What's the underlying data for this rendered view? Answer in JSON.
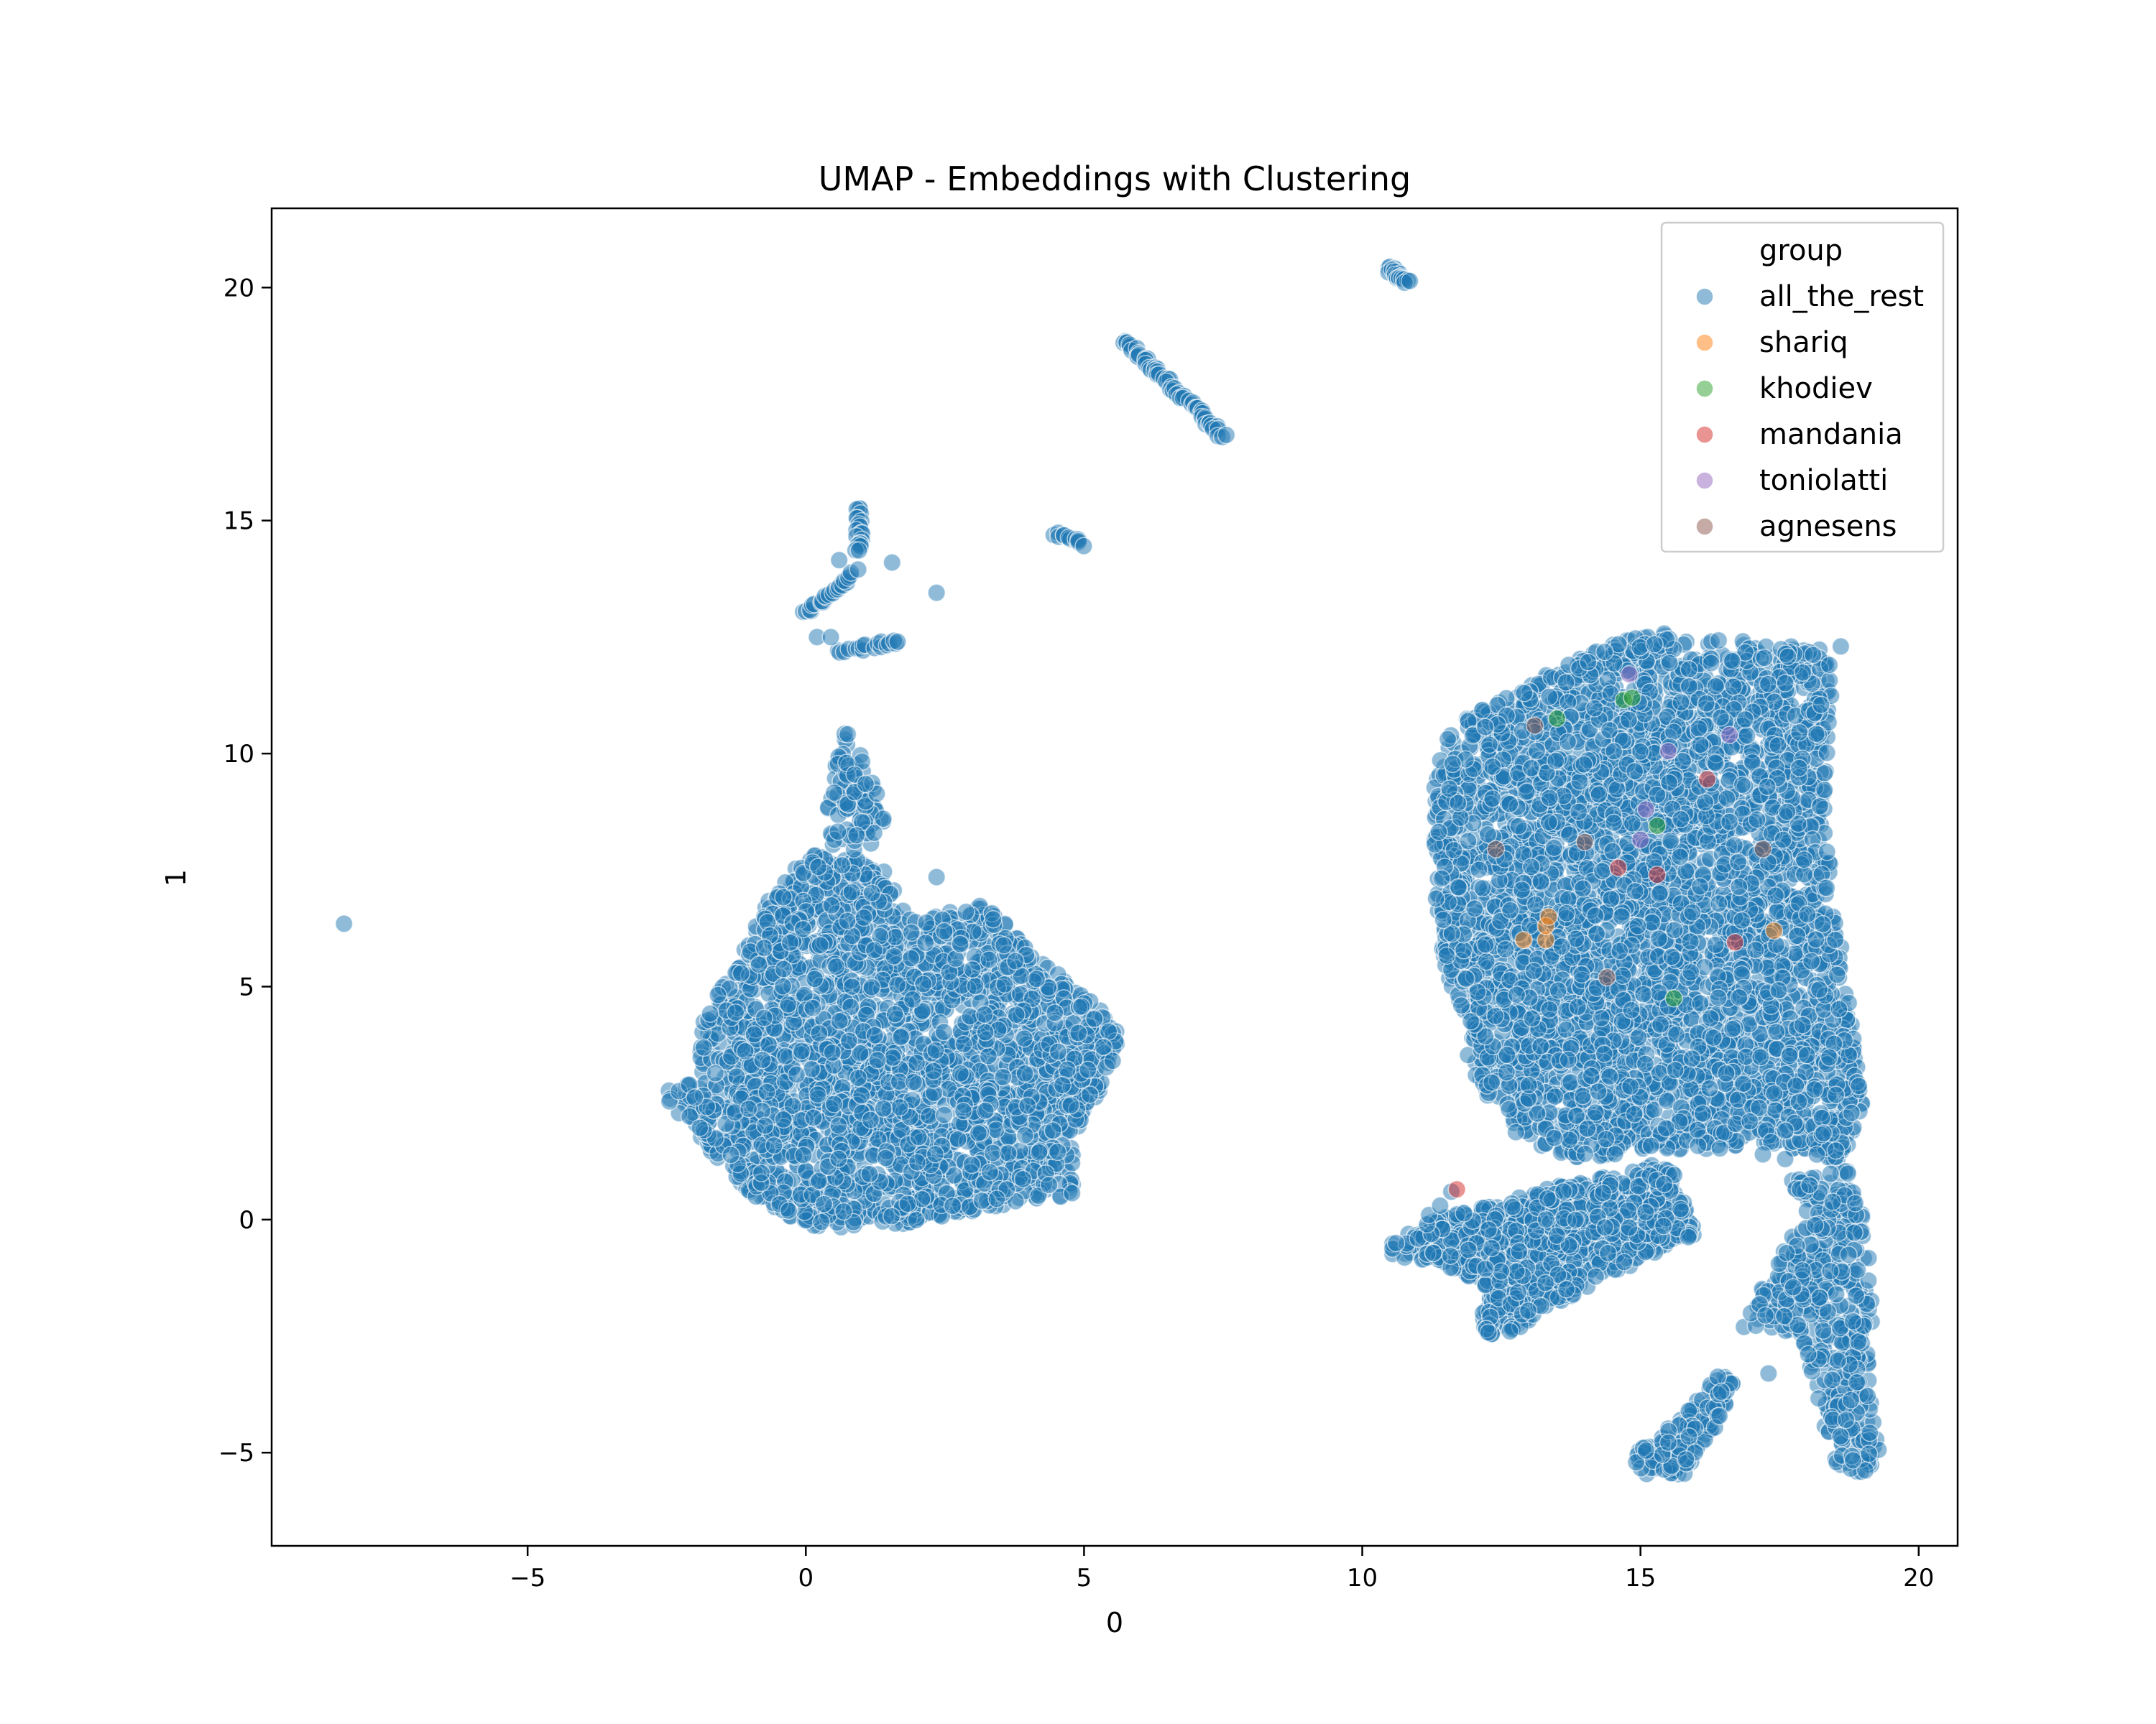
{
  "chart_data": {
    "type": "scatter",
    "title": "UMAP - Embeddings with Clustering",
    "xlabel": "0",
    "ylabel": "1",
    "xlim": [
      -9.6,
      20.7
    ],
    "ylim": [
      -7.0,
      21.7
    ],
    "xticks": [
      -5,
      0,
      5,
      10,
      15,
      20
    ],
    "yticks": [
      -5,
      0,
      5,
      10,
      15,
      20
    ],
    "grid": false,
    "legend": {
      "title": "group",
      "position": "top-right"
    },
    "point_alpha": 0.5,
    "series": [
      {
        "name": "all_the_rest",
        "color": "#1f77b4",
        "regions": [
          {
            "type": "polygon",
            "count": 2600,
            "vertices": [
              [
                -2.6,
                2.7
              ],
              [
                -2.0,
                3.0
              ],
              [
                -1.8,
                4.5
              ],
              [
                -1.2,
                5.6
              ],
              [
                -0.6,
                7.0
              ],
              [
                0.0,
                7.8
              ],
              [
                0.8,
                7.9
              ],
              [
                1.4,
                7.5
              ],
              [
                1.9,
                6.4
              ],
              [
                3.2,
                6.8
              ],
              [
                4.2,
                5.6
              ],
              [
                5.6,
                4.2
              ],
              [
                5.6,
                3.4
              ],
              [
                4.8,
                1.8
              ],
              [
                4.8,
                0.5
              ],
              [
                3.5,
                0.3
              ],
              [
                1.8,
                -0.1
              ],
              [
                0.2,
                -0.2
              ],
              [
                -0.8,
                0.3
              ],
              [
                -1.5,
                1.2
              ],
              [
                -2.2,
                2.1
              ]
            ]
          },
          {
            "type": "polygon",
            "count": 90,
            "vertices": [
              [
                0.3,
                8.6
              ],
              [
                0.7,
                10.6
              ],
              [
                1.0,
                10.1
              ],
              [
                1.3,
                9.2
              ],
              [
                1.5,
                8.4
              ],
              [
                1.1,
                7.9
              ],
              [
                0.5,
                8.0
              ]
            ]
          },
          {
            "type": "polygon",
            "count": 4200,
            "vertices": [
              [
                11.3,
                8.2
              ],
              [
                11.3,
                9.6
              ],
              [
                11.5,
                10.4
              ],
              [
                12.0,
                10.9
              ],
              [
                12.8,
                11.3
              ],
              [
                13.4,
                11.8
              ],
              [
                14.4,
                12.3
              ],
              [
                15.2,
                12.6
              ],
              [
                16.2,
                12.5
              ],
              [
                17.0,
                12.4
              ],
              [
                17.5,
                12.3
              ],
              [
                18.2,
                12.3
              ],
              [
                18.5,
                11.7
              ],
              [
                18.4,
                10.4
              ],
              [
                18.3,
                8.7
              ],
              [
                18.5,
                6.8
              ],
              [
                18.7,
                5.0
              ],
              [
                18.8,
                4.2
              ],
              [
                19.0,
                2.5
              ],
              [
                18.6,
                1.2
              ],
              [
                17.9,
                1.5
              ],
              [
                17.3,
                1.6
              ],
              [
                16.5,
                1.5
              ],
              [
                15.6,
                1.5
              ],
              [
                14.6,
                1.4
              ],
              [
                13.8,
                1.3
              ],
              [
                12.8,
                1.8
              ],
              [
                12.2,
                2.5
              ],
              [
                11.8,
                3.8
              ],
              [
                11.5,
                5.3
              ],
              [
                11.3,
                6.8
              ]
            ]
          },
          {
            "type": "polygon",
            "count": 900,
            "vertices": [
              [
                10.5,
                -0.5
              ],
              [
                11.3,
                0.0
              ],
              [
                12.3,
                0.3
              ],
              [
                13.4,
                0.7
              ],
              [
                14.0,
                0.8
              ],
              [
                15.2,
                1.2
              ],
              [
                15.6,
                1.0
              ],
              [
                16.0,
                -0.3
              ],
              [
                15.1,
                -0.8
              ],
              [
                14.5,
                -1.2
              ],
              [
                13.9,
                -1.6
              ],
              [
                13.2,
                -1.9
              ],
              [
                12.8,
                -2.4
              ],
              [
                12.2,
                -2.5
              ],
              [
                12.1,
                -1.4
              ],
              [
                11.4,
                -0.9
              ],
              [
                10.5,
                -0.8
              ]
            ]
          },
          {
            "type": "polygon",
            "count": 420,
            "vertices": [
              [
                17.7,
                1.0
              ],
              [
                18.7,
                1.1
              ],
              [
                19.0,
                0.2
              ],
              [
                19.2,
                -1.5
              ],
              [
                19.1,
                -3.5
              ],
              [
                19.3,
                -5.0
              ],
              [
                19.0,
                -5.6
              ],
              [
                18.5,
                -5.2
              ],
              [
                18.3,
                -4.5
              ],
              [
                18.1,
                -3.3
              ],
              [
                17.5,
                -2.3
              ],
              [
                16.8,
                -2.4
              ],
              [
                17.2,
                -1.4
              ],
              [
                17.7,
                -0.4
              ]
            ]
          },
          {
            "type": "polygon",
            "count": 140,
            "vertices": [
              [
                16.4,
                -3.3
              ],
              [
                16.7,
                -3.5
              ],
              [
                16.4,
                -4.4
              ],
              [
                16.0,
                -5.0
              ],
              [
                15.8,
                -5.5
              ],
              [
                15.1,
                -5.5
              ],
              [
                14.8,
                -5.1
              ],
              [
                15.4,
                -4.6
              ],
              [
                15.9,
                -4.0
              ]
            ]
          },
          {
            "type": "line",
            "count": 60,
            "from": [
              5.7,
              18.9
            ],
            "to": [
              7.5,
              16.8
            ]
          },
          {
            "type": "line",
            "count": 22,
            "from": [
              10.5,
              20.4
            ],
            "to": [
              10.8,
              20.1
            ]
          },
          {
            "type": "line",
            "count": 12,
            "from": [
              4.5,
              14.7
            ],
            "to": [
              5.0,
              14.5
            ]
          },
          {
            "type": "line",
            "count": 20,
            "from": [
              0.95,
              15.3
            ],
            "to": [
              0.95,
              14.3
            ]
          },
          {
            "type": "line",
            "count": 24,
            "from": [
              0.0,
              13.0
            ],
            "to": [
              0.9,
              13.9
            ]
          },
          {
            "type": "line",
            "count": 18,
            "from": [
              0.6,
              12.2
            ],
            "to": [
              1.7,
              12.4
            ]
          }
        ],
        "points": [
          [
            -8.3,
            6.35
          ],
          [
            2.35,
            13.45
          ],
          [
            1.55,
            14.1
          ],
          [
            0.6,
            14.15
          ],
          [
            0.2,
            12.5
          ],
          [
            0.45,
            12.5
          ],
          [
            2.35,
            7.35
          ],
          [
            18.6,
            12.3
          ],
          [
            11.2,
            0.1
          ],
          [
            11.6,
            0.6
          ],
          [
            11.4,
            0.3
          ],
          [
            17.2,
            1.4
          ],
          [
            17.6,
            1.3
          ],
          [
            17.3,
            -3.3
          ]
        ]
      },
      {
        "name": "shariq",
        "color": "#ff7f0e",
        "points": [
          [
            12.9,
            6.0
          ],
          [
            13.3,
            6.0
          ],
          [
            13.3,
            6.3
          ],
          [
            13.35,
            6.5
          ],
          [
            17.4,
            6.2
          ]
        ]
      },
      {
        "name": "khodiev",
        "color": "#2ca02c",
        "points": [
          [
            13.5,
            10.75
          ],
          [
            14.7,
            11.15
          ],
          [
            14.85,
            11.2
          ],
          [
            15.3,
            8.45
          ],
          [
            15.6,
            4.75
          ]
        ]
      },
      {
        "name": "mandania",
        "color": "#d62728",
        "points": [
          [
            16.2,
            9.45
          ],
          [
            14.6,
            7.55
          ],
          [
            15.3,
            7.4
          ],
          [
            16.7,
            5.95
          ],
          [
            11.7,
            0.65
          ]
        ]
      },
      {
        "name": "toniolatti",
        "color": "#9467bd",
        "points": [
          [
            14.8,
            11.7
          ],
          [
            15.5,
            10.05
          ],
          [
            16.6,
            10.4
          ],
          [
            15.1,
            8.8
          ],
          [
            15.0,
            8.15
          ]
        ]
      },
      {
        "name": "agnesens",
        "color": "#8c564b",
        "points": [
          [
            13.1,
            10.6
          ],
          [
            12.4,
            7.95
          ],
          [
            14.0,
            8.1
          ],
          [
            17.2,
            7.95
          ],
          [
            14.4,
            5.2
          ]
        ]
      }
    ]
  }
}
